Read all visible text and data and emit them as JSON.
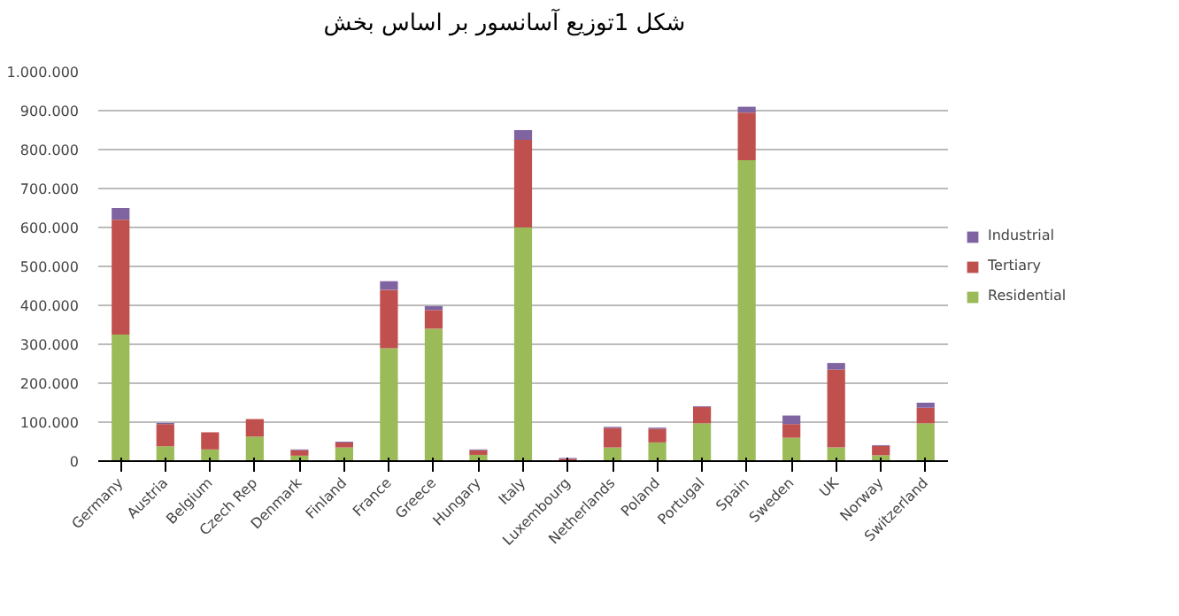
{
  "chart_data": {
    "type": "bar",
    "title": "شکل  1توزیع آسانسور بر اساس بخش",
    "stacked": true,
    "categories": [
      "Germany",
      "Austria",
      "Belgium",
      "Czech Rep",
      "Denmark",
      "Finland",
      "France",
      "Greece",
      "Hungary",
      "Italy",
      "Luxembourg",
      "Netherlands",
      "Poland",
      "Portugal",
      "Spain",
      "Sweden",
      "UK",
      "Norway",
      "Switzerland"
    ],
    "series": [
      {
        "name": "Residential",
        "color": "#9bbb59",
        "values": [
          325000,
          38000,
          30000,
          63000,
          14000,
          35000,
          290000,
          340000,
          16000,
          600000,
          null,
          35000,
          48000,
          97000,
          773000,
          60000,
          35000,
          15000,
          97000
        ]
      },
      {
        "name": "Tertiary",
        "color": "#c0504d",
        "values": [
          295000,
          57000,
          44000,
          45000,
          14000,
          13000,
          150000,
          48000,
          12000,
          225000,
          6000,
          50000,
          35000,
          42000,
          122000,
          35000,
          200000,
          24000,
          40000
        ]
      },
      {
        "name": "Industrial",
        "color": "#8064a2",
        "values": [
          30000,
          3000,
          null,
          null,
          2000,
          2000,
          22000,
          10000,
          2000,
          25000,
          2000,
          3000,
          3000,
          2000,
          15000,
          22000,
          17000,
          2000,
          13000
        ]
      }
    ],
    "ylim": [
      0,
      1000000
    ],
    "yticks": [
      {
        "value": 0,
        "label": "0"
      },
      {
        "value": 100000,
        "label": "100.000"
      },
      {
        "value": 200000,
        "label": "200.000"
      },
      {
        "value": 300000,
        "label": "300.000"
      },
      {
        "value": 400000,
        "label": "400.000"
      },
      {
        "value": 500000,
        "label": "500.000"
      },
      {
        "value": 600000,
        "label": "600.000"
      },
      {
        "value": 700000,
        "label": "700.000"
      },
      {
        "value": 800000,
        "label": "800.000"
      },
      {
        "value": 900000,
        "label": "900.000"
      },
      {
        "value": 1000000,
        "label": "1.000.000"
      }
    ],
    "grid": "y",
    "legend": "right"
  }
}
